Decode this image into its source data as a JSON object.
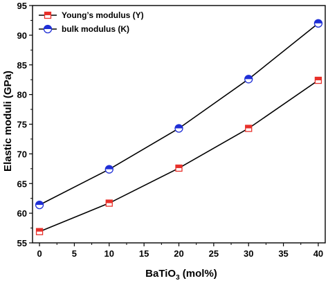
{
  "chart_data": {
    "type": "line",
    "title": "",
    "xlabel_main": "BaTiO",
    "xlabel_sub": "3",
    "xlabel_tail": " (mol%)",
    "ylabel": "Elastic moduli (GPa)",
    "xlim": [
      -1,
      41
    ],
    "ylim": [
      55,
      95
    ],
    "xticks": [
      0,
      5,
      10,
      15,
      20,
      25,
      30,
      35,
      40
    ],
    "yticks": [
      55,
      60,
      65,
      70,
      75,
      80,
      85,
      90,
      95
    ],
    "grid": false,
    "legend_position": "top-left",
    "x": [
      0,
      10,
      20,
      30,
      40
    ],
    "series": [
      {
        "name": "Young’s modulus (Y)",
        "values": [
          56.9,
          61.7,
          67.6,
          74.3,
          82.4
        ],
        "marker": "square-half",
        "color": "#e8302a"
      },
      {
        "name": "bulk modulus (K)",
        "values": [
          61.4,
          67.4,
          74.3,
          82.6,
          92.0
        ],
        "marker": "circle-half",
        "color": "#1f2fd6"
      }
    ]
  }
}
